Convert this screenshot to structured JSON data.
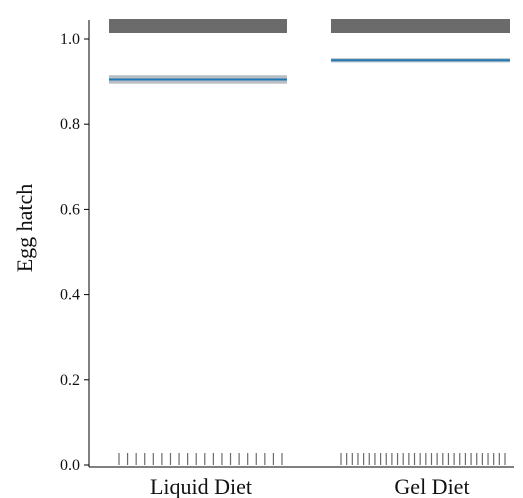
{
  "chart_data": {
    "type": "scatter",
    "title": "",
    "xlabel": "",
    "ylabel": "Egg hatch",
    "ylim": [
      0,
      1.05
    ],
    "yticks": [
      0.0,
      0.2,
      0.4,
      0.6,
      0.8,
      1.0
    ],
    "ytick_labels": [
      "0.0",
      "0.2",
      "0.4",
      "0.6",
      "0.8",
      "1.0"
    ],
    "categories": [
      "Liquid Diet",
      "Gel Diet"
    ],
    "grid": false,
    "groups": [
      {
        "name": "Liquid Diet",
        "mean": 0.905,
        "ci": [
          0.895,
          0.915
        ],
        "observations_at_1": 20,
        "observations_at_0": 20
      },
      {
        "name": "Gel Diet",
        "mean": 0.95,
        "ci": [
          0.945,
          0.955
        ],
        "observations_at_1": 30,
        "observations_at_0": 30
      }
    ],
    "colors": {
      "mean_line": "#1f77b4",
      "ci_band": "#b8bec4",
      "observations": "#6b6b6b",
      "axis": "#000000"
    }
  }
}
